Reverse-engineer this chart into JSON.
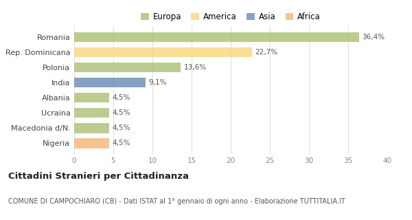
{
  "countries": [
    "Romania",
    "Rep. Dominicana",
    "Polonia",
    "India",
    "Albania",
    "Ucraina",
    "Macedonia d/N.",
    "Nigeria"
  ],
  "values": [
    36.4,
    22.7,
    13.6,
    9.1,
    4.5,
    4.5,
    4.5,
    4.5
  ],
  "labels": [
    "36,4%",
    "22,7%",
    "13,6%",
    "9,1%",
    "4,5%",
    "4,5%",
    "4,5%",
    "4,5%"
  ],
  "colors": [
    "#adc178",
    "#f9d77e",
    "#adc178",
    "#6b8cba",
    "#adc178",
    "#adc178",
    "#adc178",
    "#f5b87a"
  ],
  "legend_labels": [
    "Europa",
    "America",
    "Asia",
    "Africa"
  ],
  "legend_colors": [
    "#adc178",
    "#f9d77e",
    "#6b8cba",
    "#f5b87a"
  ],
  "xlim": [
    0,
    40
  ],
  "xticks": [
    0,
    5,
    10,
    15,
    20,
    25,
    30,
    35,
    40
  ],
  "title": "Cittadini Stranieri per Cittadinanza",
  "subtitle": "COMUNE DI CAMPOCHIARO (CB) - Dati ISTAT al 1° gennaio di ogni anno - Elaborazione TUTTITALIA.IT",
  "title_fontsize": 9.5,
  "subtitle_fontsize": 7.0,
  "background_color": "#ffffff",
  "grid_color": "#e0e0e0",
  "bar_alpha": 0.82
}
